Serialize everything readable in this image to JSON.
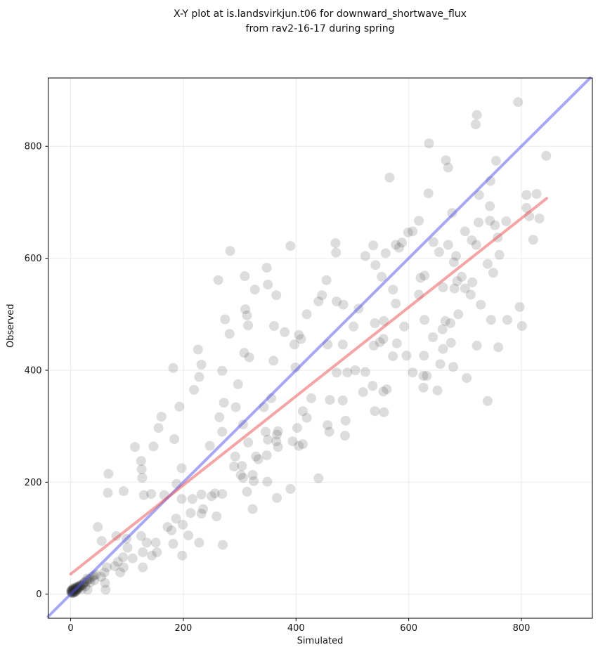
{
  "title": {
    "line1": "X-Y plot at is.landsvirkjun.t06 for downward_shortwave_flux",
    "line2": "from rav2-16-17 during spring"
  },
  "chart_data": {
    "type": "scatter",
    "xlabel": "Simulated",
    "ylabel": "Observed",
    "xlim": [
      -40,
      926
    ],
    "ylim": [
      -43,
      922
    ],
    "xticks": [
      0,
      200,
      400,
      600,
      800
    ],
    "yticks": [
      0,
      200,
      400,
      600,
      800
    ],
    "grid": true,
    "grid_color": "#ebebeb",
    "background": "#ffffff",
    "series": [
      {
        "name": "observations",
        "marker": "circle",
        "radius": 7,
        "color": "rgba(45,45,45,0.16)",
        "points": [
          [
            283,
            613
          ],
          [
            566,
            744
          ],
          [
            390,
            622
          ],
          [
            470,
            627
          ],
          [
            471,
            610
          ],
          [
            537,
            623
          ],
          [
            559,
            609
          ],
          [
            577,
            624
          ],
          [
            588,
            628
          ],
          [
            583,
            619
          ],
          [
            599,
            646
          ],
          [
            523,
            604
          ],
          [
            794,
            879
          ],
          [
            721,
            856
          ],
          [
            719,
            839
          ],
          [
            636,
            805
          ],
          [
            666,
            775
          ],
          [
            670,
            762
          ],
          [
            755,
            774
          ],
          [
            844,
            783
          ],
          [
            635,
            716
          ],
          [
            725,
            713
          ],
          [
            745,
            738
          ],
          [
            618,
            667
          ],
          [
            677,
            681
          ],
          [
            607,
            648
          ],
          [
            644,
            629
          ],
          [
            654,
            611
          ],
          [
            670,
            624
          ],
          [
            684,
            604
          ],
          [
            700,
            648
          ],
          [
            712,
            632
          ],
          [
            724,
            664
          ],
          [
            720,
            624
          ],
          [
            744,
            693
          ],
          [
            744,
            667
          ],
          [
            753,
            659
          ],
          [
            758,
            637
          ],
          [
            773,
            666
          ],
          [
            809,
            713
          ],
          [
            827,
            715
          ],
          [
            809,
            690
          ],
          [
            814,
            675
          ],
          [
            832,
            671
          ],
          [
            761,
            606
          ],
          [
            821,
            633
          ],
          [
            262,
            561
          ],
          [
            274,
            491
          ],
          [
            282,
            465
          ],
          [
            226,
            437
          ],
          [
            232,
            410
          ],
          [
            182,
            404
          ],
          [
            269,
            399
          ],
          [
            228,
            388
          ],
          [
            219,
            365
          ],
          [
            193,
            335
          ],
          [
            272,
            342
          ],
          [
            161,
            317
          ],
          [
            156,
            297
          ],
          [
            264,
            316
          ],
          [
            269,
            290
          ],
          [
            309,
            568
          ],
          [
            348,
            583
          ],
          [
            327,
            544
          ],
          [
            350,
            553
          ],
          [
            365,
            534
          ],
          [
            310,
            509
          ],
          [
            313,
            498
          ],
          [
            315,
            480
          ],
          [
            361,
            479
          ],
          [
            380,
            468
          ],
          [
            405,
            463
          ],
          [
            409,
            456
          ],
          [
            397,
            446
          ],
          [
            308,
            431
          ],
          [
            317,
            423
          ],
          [
            360,
            417
          ],
          [
            399,
            405
          ],
          [
            419,
            500
          ],
          [
            454,
            561
          ],
          [
            446,
            534
          ],
          [
            440,
            523
          ],
          [
            472,
            523
          ],
          [
            484,
            517
          ],
          [
            511,
            510
          ],
          [
            502,
            478
          ],
          [
            456,
            446
          ],
          [
            483,
            446
          ],
          [
            491,
            396
          ],
          [
            472,
            396
          ],
          [
            505,
            400
          ],
          [
            541,
            588
          ],
          [
            552,
            567
          ],
          [
            572,
            544
          ],
          [
            577,
            519
          ],
          [
            556,
            488
          ],
          [
            540,
            484
          ],
          [
            555,
            456
          ],
          [
            538,
            444
          ],
          [
            549,
            450
          ],
          [
            579,
            448
          ],
          [
            592,
            478
          ],
          [
            596,
            426
          ],
          [
            572,
            425
          ],
          [
            523,
            397
          ],
          [
            519,
            361
          ],
          [
            536,
            372
          ],
          [
            555,
            362
          ],
          [
            561,
            366
          ],
          [
            540,
            327
          ],
          [
            556,
            325
          ],
          [
            483,
            346
          ],
          [
            488,
            310
          ],
          [
            460,
            347
          ],
          [
            427,
            350
          ],
          [
            412,
            327
          ],
          [
            419,
            315
          ],
          [
            356,
            350
          ],
          [
            343,
            334
          ],
          [
            297,
            375
          ],
          [
            293,
            334
          ],
          [
            306,
            303
          ],
          [
            346,
            290
          ],
          [
            366,
            285
          ],
          [
            368,
            291
          ],
          [
            402,
            297
          ],
          [
            456,
            302
          ],
          [
            459,
            290
          ],
          [
            487,
            283
          ],
          [
            680,
            593
          ],
          [
            740,
            590
          ],
          [
            750,
            574
          ],
          [
            628,
            569
          ],
          [
            621,
            565
          ],
          [
            694,
            567
          ],
          [
            686,
            559
          ],
          [
            713,
            557
          ],
          [
            661,
            548
          ],
          [
            681,
            546
          ],
          [
            700,
            546
          ],
          [
            618,
            535
          ],
          [
            710,
            535
          ],
          [
            728,
            517
          ],
          [
            797,
            513
          ],
          [
            688,
            500
          ],
          [
            628,
            490
          ],
          [
            665,
            488
          ],
          [
            674,
            484
          ],
          [
            746,
            490
          ],
          [
            775,
            490
          ],
          [
            801,
            479
          ],
          [
            660,
            473
          ],
          [
            643,
            459
          ],
          [
            675,
            449
          ],
          [
            721,
            444
          ],
          [
            759,
            441
          ],
          [
            661,
            438
          ],
          [
            627,
            426
          ],
          [
            656,
            411
          ],
          [
            679,
            406
          ],
          [
            607,
            396
          ],
          [
            626,
            390
          ],
          [
            632,
            390
          ],
          [
            703,
            386
          ],
          [
            626,
            369
          ],
          [
            651,
            364
          ],
          [
            740,
            345
          ],
          [
            114,
            263
          ],
          [
            147,
            264
          ],
          [
            125,
            238
          ],
          [
            126,
            223
          ],
          [
            67,
            215
          ],
          [
            127,
            208
          ],
          [
            197,
            225
          ],
          [
            184,
            277
          ],
          [
            247,
            265
          ],
          [
            66,
            181
          ],
          [
            94,
            184
          ],
          [
            130,
            177
          ],
          [
            143,
            179
          ],
          [
            166,
            177
          ],
          [
            188,
            197
          ],
          [
            197,
            170
          ],
          [
            216,
            170
          ],
          [
            232,
            178
          ],
          [
            235,
            152
          ],
          [
            250,
            175
          ],
          [
            256,
            180
          ],
          [
            269,
            179
          ],
          [
            232,
            144
          ],
          [
            213,
            145
          ],
          [
            187,
            135
          ],
          [
            199,
            124
          ],
          [
            172,
            120
          ],
          [
            179,
            114
          ],
          [
            48,
            120
          ],
          [
            55,
            95
          ],
          [
            81,
            104
          ],
          [
            99,
            99
          ],
          [
            101,
            83
          ],
          [
            125,
            104
          ],
          [
            135,
            92
          ],
          [
            151,
            92
          ],
          [
            153,
            75
          ],
          [
            128,
            75
          ],
          [
            144,
            69
          ],
          [
            110,
            64
          ],
          [
            93,
            66
          ],
          [
            84,
            58
          ],
          [
            78,
            50
          ],
          [
            94,
            48
          ],
          [
            88,
            39
          ],
          [
            64,
            48
          ],
          [
            60,
            39
          ],
          [
            54,
            31
          ],
          [
            45,
            35
          ],
          [
            42,
            25
          ],
          [
            35,
            21
          ],
          [
            29,
            28
          ],
          [
            24,
            21
          ],
          [
            26,
            14
          ],
          [
            20,
            9
          ],
          [
            30,
            8
          ],
          [
            61,
            20
          ],
          [
            182,
            90
          ],
          [
            209,
            105
          ],
          [
            228,
            92
          ],
          [
            270,
            88
          ],
          [
            198,
            69
          ],
          [
            128,
            48
          ],
          [
            62,
            8
          ],
          [
            259,
            139
          ],
          [
            315,
            271
          ],
          [
            350,
            276
          ],
          [
            365,
            273
          ],
          [
            368,
            263
          ],
          [
            394,
            273
          ],
          [
            405,
            265
          ],
          [
            412,
            268
          ],
          [
            292,
            246
          ],
          [
            329,
            246
          ],
          [
            333,
            241
          ],
          [
            348,
            248
          ],
          [
            290,
            228
          ],
          [
            304,
            229
          ],
          [
            302,
            213
          ],
          [
            306,
            208
          ],
          [
            323,
            213
          ],
          [
            325,
            202
          ],
          [
            349,
            201
          ],
          [
            440,
            207
          ],
          [
            390,
            188
          ],
          [
            366,
            172
          ],
          [
            313,
            183
          ],
          [
            323,
            152
          ],
          [
            1,
            3
          ],
          [
            2,
            5
          ],
          [
            3,
            2
          ],
          [
            2,
            7
          ],
          [
            4,
            4
          ],
          [
            5,
            6
          ],
          [
            3,
            8
          ],
          [
            1,
            5
          ],
          [
            6,
            3
          ],
          [
            4,
            9
          ],
          [
            5,
            2
          ],
          [
            7,
            5
          ],
          [
            2,
            2
          ],
          [
            3,
            4
          ],
          [
            6,
            7
          ],
          [
            8,
            8
          ],
          [
            1,
            7
          ],
          [
            4,
            6
          ],
          [
            9,
            5
          ],
          [
            10,
            9
          ],
          [
            7,
            10
          ],
          [
            5,
            11
          ],
          [
            11,
            8
          ],
          [
            12,
            11
          ],
          [
            8,
            4
          ],
          [
            13,
            10
          ],
          [
            10,
            13
          ],
          [
            14,
            13
          ],
          [
            6,
            9
          ],
          [
            15,
            12
          ],
          [
            16,
            15
          ],
          [
            9,
            10
          ],
          [
            12,
            8
          ],
          [
            17,
            14
          ],
          [
            18,
            17
          ],
          [
            13,
            14
          ],
          [
            11,
            12
          ],
          [
            19,
            15
          ],
          [
            22,
            18
          ],
          [
            21,
            16
          ],
          [
            25,
            21
          ],
          [
            28,
            23
          ],
          [
            31,
            26
          ],
          [
            34,
            27
          ],
          [
            38,
            31
          ],
          [
            41,
            33
          ]
        ]
      }
    ],
    "lines": [
      {
        "name": "one-to-one-line",
        "color": "rgba(80,80,235,0.5)",
        "width": 4,
        "from": [
          -40,
          -40
        ],
        "to": [
          922,
          922
        ]
      },
      {
        "name": "regression-line",
        "color": "rgba(235,75,75,0.5)",
        "width": 4,
        "from": [
          0,
          36
        ],
        "to": [
          845,
          707
        ]
      }
    ]
  }
}
